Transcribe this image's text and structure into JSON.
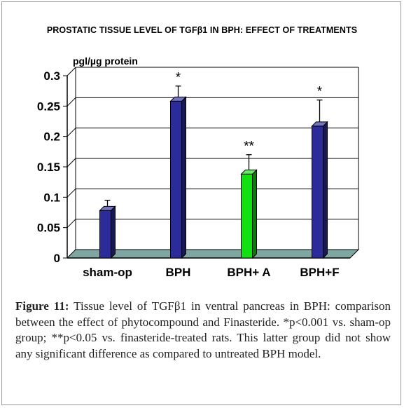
{
  "chart_data": {
    "type": "bar",
    "title": "PROSTATIC TISSUE LEVEL OF TGFβ1 IN BPH: EFFECT OF TREATMENTS",
    "ylabel": "pgl/µg protein",
    "xlabel": "",
    "categories": [
      "sham-op",
      "BPH",
      "BPH+ A",
      "BPH+F"
    ],
    "values": [
      0.078,
      0.258,
      0.138,
      0.217
    ],
    "error_upper": [
      0.095,
      0.283,
      0.17,
      0.26
    ],
    "annotations": [
      "",
      "*",
      "**",
      "*"
    ],
    "bar_colors": [
      "#2b2b9a",
      "#2b2b9a",
      "#11e011",
      "#2b2b9a"
    ],
    "ylim": [
      0,
      0.3
    ],
    "yticks": [
      "0",
      "0.05",
      "0.1",
      "0.15",
      "0.2",
      "0.25",
      "0.3"
    ],
    "grid": true
  },
  "caption": {
    "label": "Figure 11:",
    "text": " Tissue level of TGFβ1 in ventral pancreas in BPH: comparison between the effect of phytocompound and Finasteride. *p<0.001 vs. sham-op group; **p<0.05 vs. finasteride-treated rats. This latter group did not show any significant difference as compared to untreated BPH model."
  }
}
